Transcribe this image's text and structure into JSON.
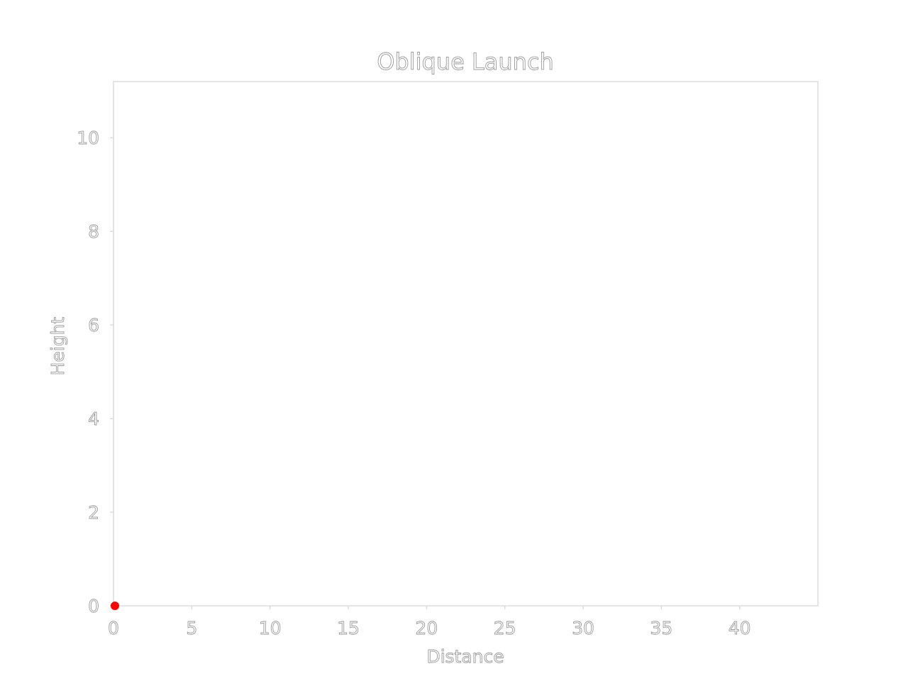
{
  "chart_data": {
    "type": "scatter",
    "title": "Oblique Launch",
    "xlabel": "Distance",
    "ylabel": "Height",
    "xlim": [
      0,
      45
    ],
    "ylim": [
      0,
      11.2
    ],
    "xticks": [
      0,
      5,
      10,
      15,
      20,
      25,
      30,
      35,
      40
    ],
    "yticks": [
      0,
      2,
      4,
      6,
      8,
      10
    ],
    "grid": false,
    "series": [
      {
        "x": [
          0
        ],
        "y": [
          0
        ],
        "color": "#ff0000"
      }
    ]
  }
}
